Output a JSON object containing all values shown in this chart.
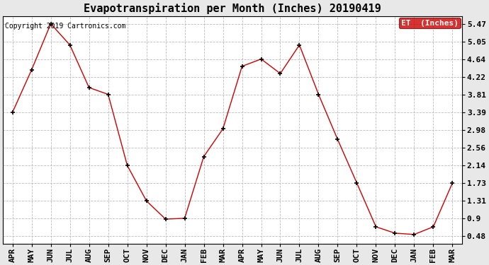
{
  "title": "Evapotranspiration per Month (Inches) 20190419",
  "copyright": "Copyright 2019 Cartronics.com",
  "legend_label": "ET  (Inches)",
  "months": [
    "APR",
    "MAY",
    "JUN",
    "JUL",
    "AUG",
    "SEP",
    "OCT",
    "NOV",
    "DEC",
    "JAN",
    "FEB",
    "MAR",
    "APR",
    "MAY",
    "JUN",
    "JUL",
    "AUG",
    "SEP",
    "OCT",
    "NOV",
    "DEC",
    "JAN",
    "FEB",
    "MAR"
  ],
  "values": [
    3.39,
    4.39,
    5.47,
    4.97,
    3.97,
    3.81,
    2.14,
    1.31,
    0.88,
    0.9,
    2.35,
    3.0,
    4.47,
    4.64,
    4.3,
    4.97,
    3.81,
    2.75,
    1.73,
    0.7,
    0.55,
    0.52,
    0.7,
    1.73
  ],
  "yticks": [
    0.48,
    0.9,
    1.31,
    1.73,
    2.14,
    2.56,
    2.98,
    3.39,
    3.81,
    4.22,
    4.64,
    5.05,
    5.47
  ],
  "ylim": [
    0.3,
    5.65
  ],
  "line_color": "#cc0000",
  "marker": "+",
  "marker_color": "#000000",
  "grid_color": "#bbbbbb",
  "background_color": "#e8e8e8",
  "plot_bg_color": "#ffffff",
  "title_fontsize": 11,
  "tick_fontsize": 8,
  "copyright_fontsize": 7,
  "legend_bg": "#cc0000",
  "legend_fg": "#ffffff",
  "legend_fontsize": 8
}
